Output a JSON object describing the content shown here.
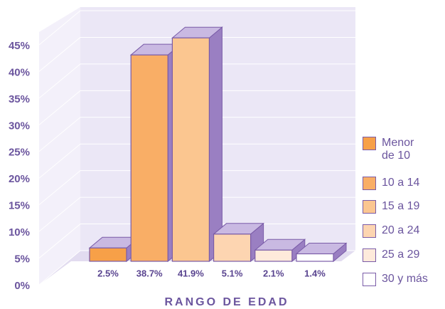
{
  "chart_data": {
    "type": "bar",
    "x_label": "RANGO DE EDAD",
    "categories": [
      "Menor de 10",
      "10 a 14",
      "15 a 19",
      "20 a 24",
      "25 a 29",
      "30  y más"
    ],
    "values": [
      2.5,
      38.7,
      41.9,
      5.1,
      2.1,
      1.4
    ],
    "value_labels": [
      "2.5%",
      "38.7%",
      "41.9%",
      "5.1%",
      "2.1%",
      "1.4%"
    ],
    "colors": [
      "#f7a048",
      "#f9ae66",
      "#fbc690",
      "#fdd5b1",
      "#feeadb",
      "#ffffff"
    ],
    "ylim": [
      0,
      45
    ],
    "yticks": [
      {
        "value": 0,
        "label": "0%"
      },
      {
        "value": 5,
        "label": "5%"
      },
      {
        "value": 10,
        "label": "10%"
      },
      {
        "value": 15,
        "label": "15%"
      },
      {
        "value": 20,
        "label": "20%"
      },
      {
        "value": 25,
        "label": "25%"
      },
      {
        "value": 30,
        "label": "30%"
      },
      {
        "value": 35,
        "label": "35%"
      },
      {
        "value": 40,
        "label": "40%"
      },
      {
        "value": 45,
        "label": "45%"
      }
    ],
    "grid": true,
    "legend": "right"
  }
}
